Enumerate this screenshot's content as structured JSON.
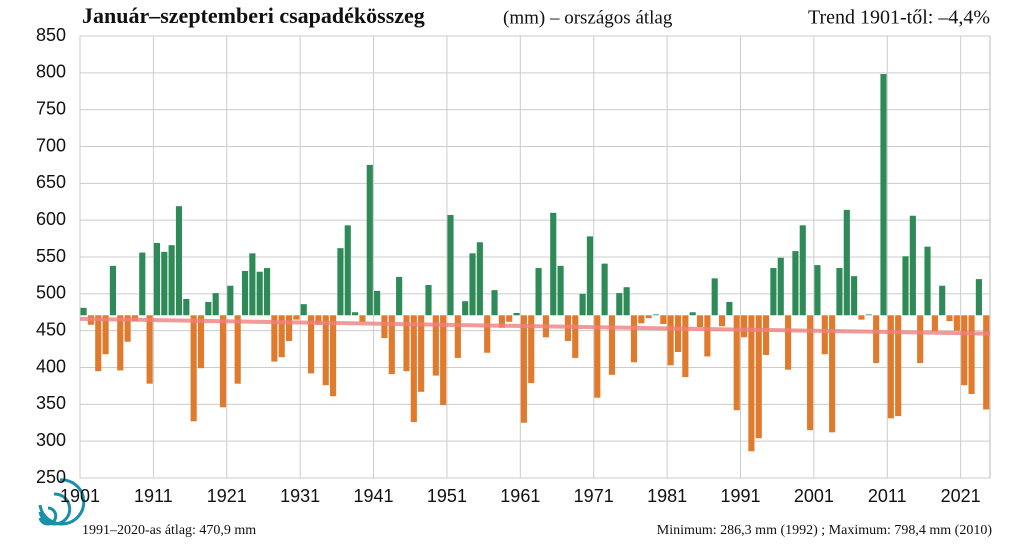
{
  "chart_data": {
    "type": "bar",
    "title": "Január–szeptemberi csapadékösszeg",
    "subtitle": "(mm) – országos átlag",
    "trend_label": "Trend 1901-től: –4,4%",
    "footer_left": "1991–2020-as átlag:  470,9 mm",
    "footer_right": "Minimum:  286,3 mm (1992) ; Maximum:  798,4 mm (2010)",
    "baseline": 470.9,
    "above_color": "#2e8b57",
    "below_color": "#e07b2e",
    "trend_line": {
      "color": "#f08080",
      "start": 466,
      "end": 446
    },
    "ylim": [
      250,
      850
    ],
    "yticks": [
      250,
      300,
      350,
      400,
      450,
      500,
      550,
      600,
      650,
      700,
      750,
      800,
      850
    ],
    "grid": true,
    "categories": [
      "1901",
      null,
      null,
      null,
      null,
      null,
      null,
      null,
      null,
      null,
      "1911",
      null,
      null,
      null,
      null,
      null,
      null,
      null,
      null,
      null,
      "1921",
      null,
      null,
      null,
      null,
      null,
      null,
      null,
      null,
      null,
      "1931",
      null,
      null,
      null,
      null,
      null,
      null,
      null,
      null,
      null,
      "1941",
      null,
      null,
      null,
      null,
      null,
      null,
      null,
      null,
      null,
      "1951",
      null,
      null,
      null,
      null,
      null,
      null,
      null,
      null,
      null,
      "1961",
      null,
      null,
      null,
      null,
      null,
      null,
      null,
      null,
      null,
      "1971",
      null,
      null,
      null,
      null,
      null,
      null,
      null,
      null,
      null,
      "1981",
      null,
      null,
      null,
      null,
      null,
      null,
      null,
      null,
      null,
      "1991",
      null,
      null,
      null,
      null,
      null,
      null,
      null,
      null,
      null,
      "2001",
      null,
      null,
      null,
      null,
      null,
      null,
      null,
      null,
      null,
      "2011",
      null,
      null,
      null,
      null,
      null,
      null,
      null,
      null,
      null,
      "2021",
      null,
      null,
      null
    ],
    "values": [
      481,
      458,
      395,
      418,
      538,
      396,
      435,
      463,
      556,
      378,
      569,
      557,
      566,
      619,
      493,
      327,
      399,
      489,
      501,
      346,
      511,
      378,
      531,
      555,
      530,
      535,
      408,
      414,
      436,
      465,
      486,
      392,
      458,
      376,
      361,
      562,
      593,
      475,
      462,
      675,
      504,
      440,
      391,
      523,
      395,
      326,
      367,
      512,
      389,
      349,
      607,
      413,
      490,
      555,
      570,
      420,
      505,
      454,
      462,
      474,
      325,
      379,
      535,
      441,
      610,
      538,
      436,
      413,
      500,
      578,
      359,
      541,
      390,
      501,
      509,
      407,
      460,
      467,
      472,
      459,
      403,
      421,
      387,
      475,
      455,
      415,
      521,
      456,
      489,
      342,
      441,
      286.3,
      304,
      417,
      535,
      549,
      397,
      558,
      593,
      315,
      539,
      418,
      312,
      535,
      614,
      524,
      465,
      472,
      406,
      798.4,
      331,
      334,
      551,
      606,
      406,
      564,
      449,
      511,
      463,
      450,
      376,
      364,
      520,
      343
    ]
  }
}
